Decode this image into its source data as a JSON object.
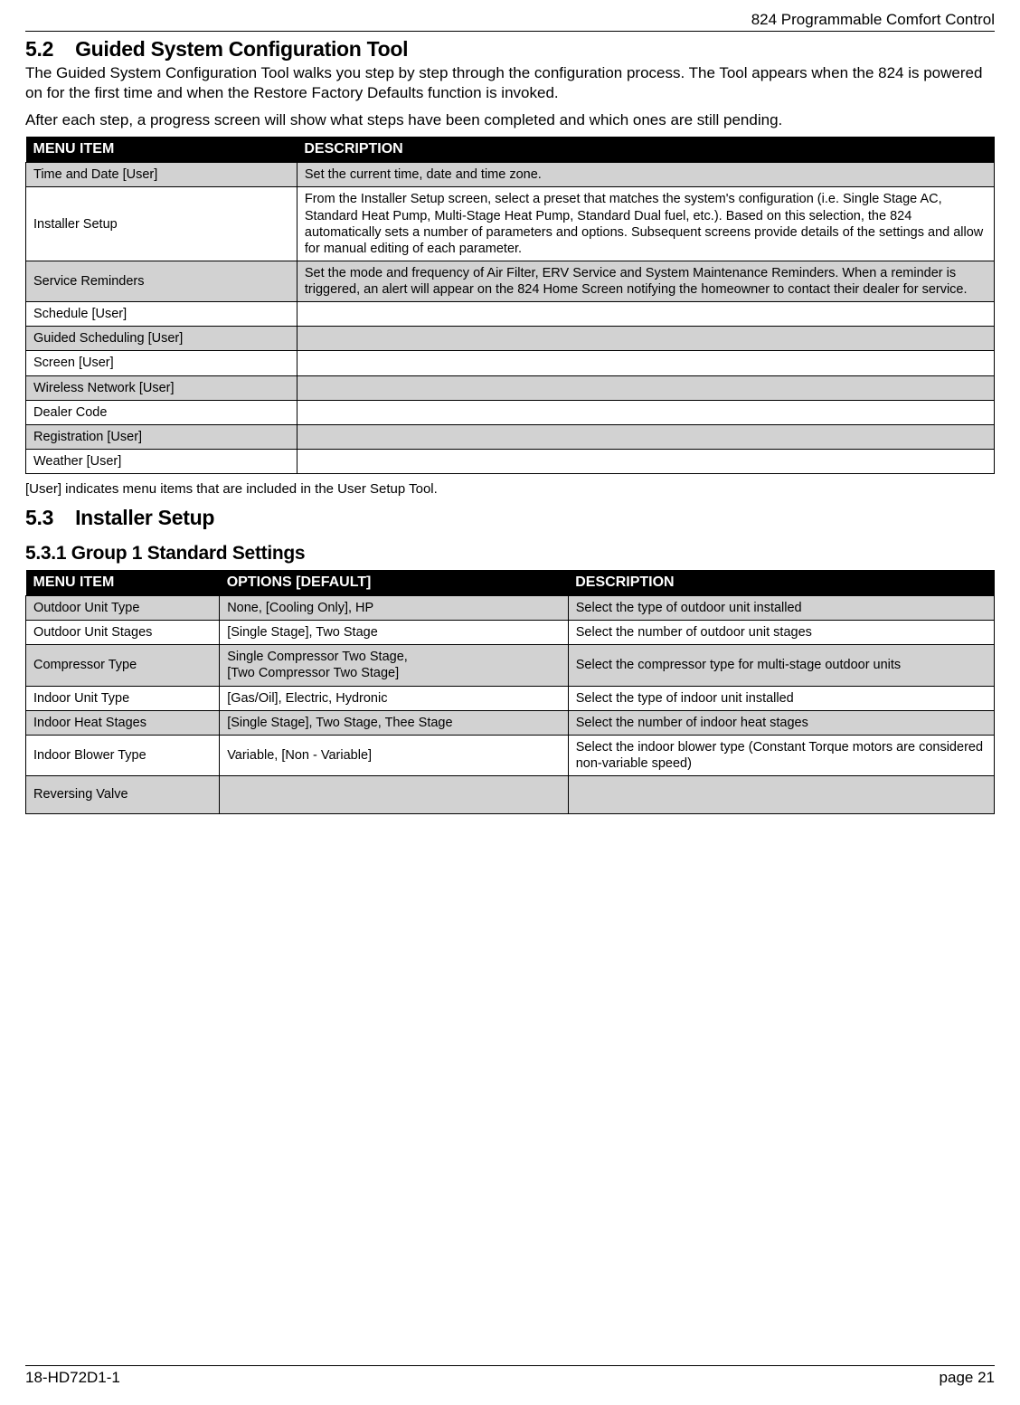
{
  "header": {
    "title": "824 Programmable Comfort Control"
  },
  "section52": {
    "number": "5.2",
    "title": "Guided System Configuration Tool",
    "para1": "The Guided System Configuration Tool walks you step by step through the configuration process. The Tool appears when the 824 is powered on for the first time and when the Restore Factory Defaults function is invoked.",
    "para2": "After each step, a progress screen will show what steps have been completed and which ones are still pending."
  },
  "table1": {
    "headers": {
      "col1": "MENU ITEM",
      "col2": "DESCRIPTION"
    },
    "rows": [
      {
        "item": "Time and Date [User]",
        "desc": "Set the current time, date and time zone.",
        "shade": true
      },
      {
        "item": "Installer Setup",
        "desc": "From the Installer Setup screen, select a preset that matches the system's configuration (i.e. Single Stage AC, Standard Heat Pump, Multi-Stage Heat Pump, Standard Dual fuel, etc.). Based on this selection, the 824 automatically sets a number of parameters and options. Subsequent screens provide details of the settings and allow for manual editing of each parameter.",
        "shade": false
      },
      {
        "item": "Service Reminders",
        "desc": "Set the mode and frequency of Air Filter, ERV Service and System Maintenance Reminders. When a reminder is triggered, an alert will appear on the 824 Home Screen notifying the homeowner to contact their dealer for service.",
        "shade": true
      },
      {
        "item": "Schedule [User]",
        "desc": "",
        "shade": false
      },
      {
        "item": "Guided Scheduling [User]",
        "desc": "",
        "shade": true
      },
      {
        "item": "Screen  [User]",
        "desc": "",
        "shade": false
      },
      {
        "item": "Wireless Network [User]",
        "desc": "",
        "shade": true
      },
      {
        "item": "Dealer Code",
        "desc": "",
        "shade": false
      },
      {
        "item": "Registration [User]",
        "desc": "",
        "shade": true
      },
      {
        "item": "Weather [User]",
        "desc": "",
        "shade": false
      }
    ]
  },
  "note1": "[User] indicates menu items that are included in the User Setup Tool.",
  "section53": {
    "number": "5.3",
    "title": "Installer Setup"
  },
  "section531": {
    "number": "5.3.1",
    "title": "Group 1 Standard Settings"
  },
  "table2": {
    "headers": {
      "col1": "MENU ITEM",
      "col2": "OPTIONS [DEFAULT]",
      "col3": "DESCRIPTION"
    },
    "rows": [
      {
        "item": "Outdoor Unit Type",
        "opts": "None, [Cooling Only], HP",
        "desc": "Select the type of outdoor unit installed",
        "shade": true
      },
      {
        "item": "Outdoor Unit Stages",
        "opts": "[Single Stage], Two Stage",
        "desc": "Select the number of outdoor unit stages",
        "shade": false
      },
      {
        "item": "Compressor Type",
        "opts": "Single Compressor Two Stage,\n[Two Compressor Two Stage]",
        "desc": "Select the compressor type for multi-stage outdoor units",
        "shade": true
      },
      {
        "item": "Indoor Unit Type",
        "opts": "[Gas/Oil], Electric, Hydronic",
        "desc": "Select the type of indoor unit installed",
        "shade": false
      },
      {
        "item": "Indoor Heat Stages",
        "opts": "[Single Stage], Two Stage, Thee Stage",
        "desc": "Select the number of indoor heat stages",
        "shade": true
      },
      {
        "item": "Indoor Blower Type",
        "opts": "Variable, [Non - Variable]",
        "desc": "Select the indoor blower type (Constant Torque motors are considered non-variable speed)",
        "shade": false
      },
      {
        "item": "Reversing Valve",
        "opts": "",
        "desc": "",
        "shade": true,
        "tall": true
      }
    ]
  },
  "footer": {
    "left": "18-HD72D1-1",
    "right": "page 21"
  }
}
